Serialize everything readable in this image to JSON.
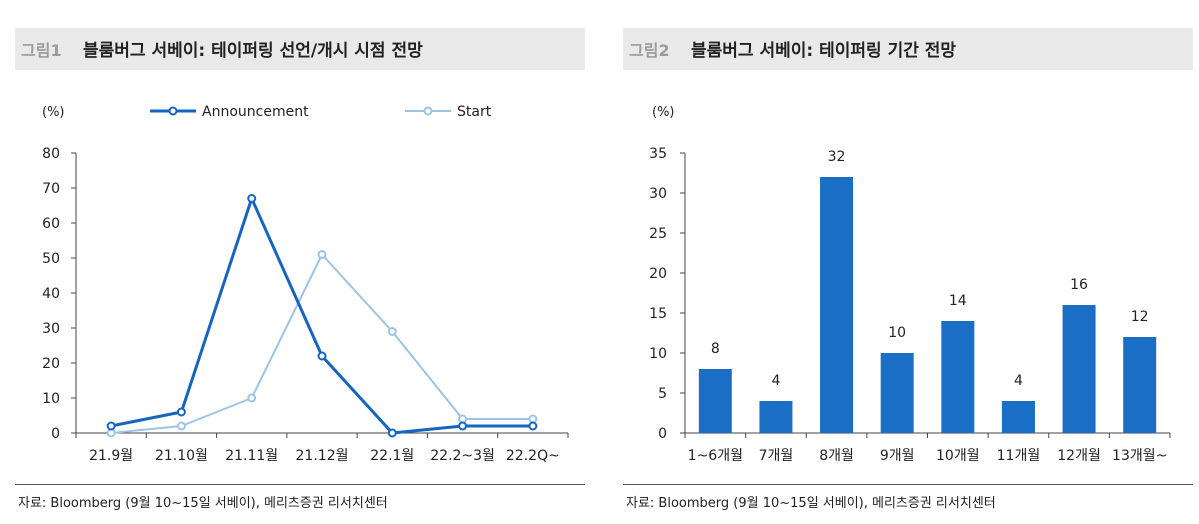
{
  "figure1": {
    "label": "그림1",
    "title": "블룸버그 서베이: 테이퍼링 선언/개시 시점 전망",
    "source": "자료: Bloomberg (9월 10~15일 서베이), 메리츠증권 리서치센터"
  },
  "figure2": {
    "label": "그림2",
    "title": "블룸버그 서베이: 테이퍼링 기간 전망",
    "source": "자료: Bloomberg (9월 10~15일 서베이), 메리츠증권 리서치센터"
  },
  "chart_data": [
    {
      "type": "line",
      "ylabel": "(%)",
      "ylim": [
        0,
        80
      ],
      "yticks": [
        0,
        10,
        20,
        30,
        40,
        50,
        60,
        70,
        80
      ],
      "categories": [
        "21.9월",
        "21.10월",
        "21.11월",
        "21.12월",
        "22.1월",
        "22.2~3월",
        "22.2Q~"
      ],
      "series": [
        {
          "name": "Announcement",
          "color": "#1565c0",
          "values": [
            2,
            6,
            67,
            22,
            0,
            2,
            2
          ]
        },
        {
          "name": "Start",
          "color": "#9dc3e6",
          "values": [
            0,
            2,
            10,
            51,
            29,
            4,
            4
          ]
        }
      ],
      "legend": "top",
      "grid": false
    },
    {
      "type": "bar",
      "ylabel": "(%)",
      "ylim": [
        0,
        35
      ],
      "yticks": [
        0,
        5,
        10,
        15,
        20,
        25,
        30,
        35
      ],
      "categories": [
        "1~6개월",
        "7개월",
        "8개월",
        "9개월",
        "10개월",
        "11개월",
        "12개월",
        "13개월~"
      ],
      "values": [
        8,
        4,
        32,
        10,
        14,
        4,
        16,
        12
      ],
      "color": "#1a6fc4",
      "grid": false
    }
  ]
}
